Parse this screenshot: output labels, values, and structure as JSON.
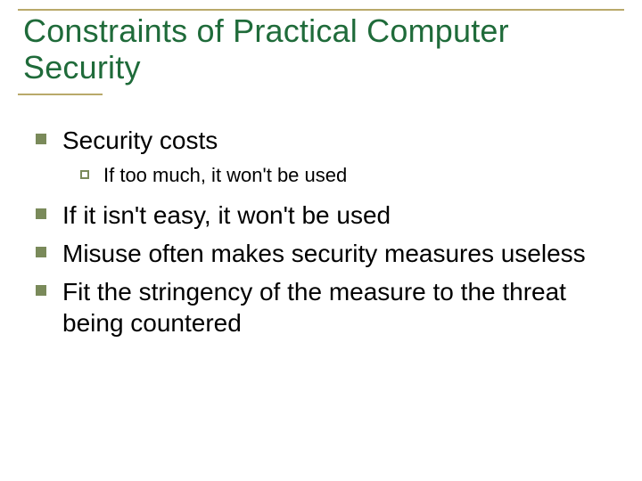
{
  "colors": {
    "title_text": "#1f6b3a",
    "title_rule": "#b9a96a",
    "body_text": "#000000",
    "bullet_l1": "#7a8a5a",
    "bullet_l2_border": "#7a8a5a",
    "rule_bottom_width_pct": 14
  },
  "title": "Constraints of Practical Computer Security",
  "bullets": [
    {
      "text": "Security costs",
      "children": [
        {
          "text": "If too much, it won't be used"
        }
      ]
    },
    {
      "text": "If it isn't easy, it won't be used"
    },
    {
      "text": "Misuse often makes security measures useless"
    },
    {
      "text": "Fit the stringency of the measure to the threat being countered"
    }
  ]
}
